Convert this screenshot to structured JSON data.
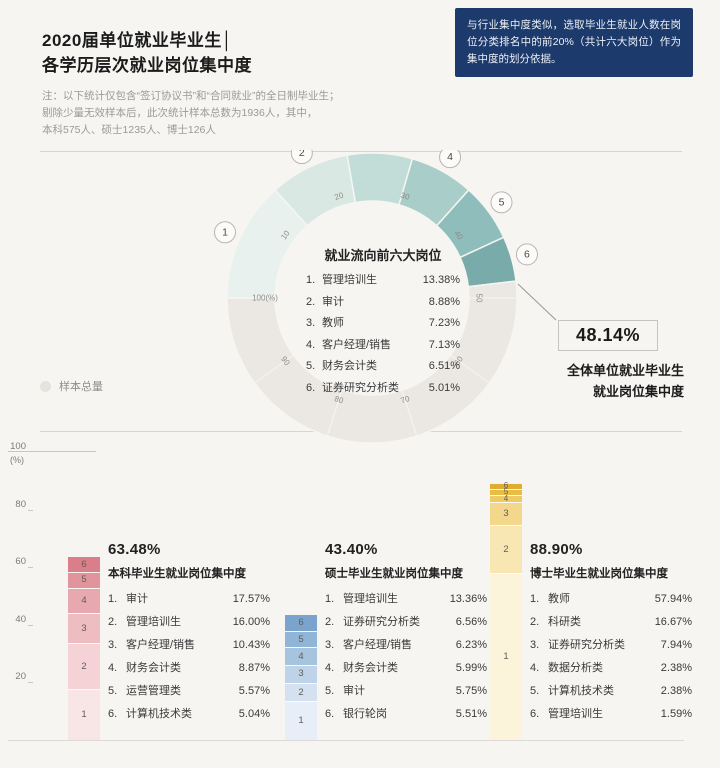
{
  "header": {
    "title_line1": "2020届单位就业毕业生│",
    "title_line2": "各学历层次就业岗位集中度",
    "notes": [
      "注：以下统计仅包含“签订协议书”和“合同就业”的全日制毕业生；",
      "剔除少量无效样本后，此次统计样本总数为1936人，其中，",
      "本科575人、硕士1235人、博士126人"
    ],
    "callout_text": "与行业集中度类似，选取毕业生就业人数在岗位分类排名中的前20%（共计六大岗位）作为集中度的划分依据。"
  },
  "legend": {
    "sample_total": "样本总量"
  },
  "axis": {
    "ticks": [
      "100",
      "80",
      "60",
      "40",
      "20"
    ],
    "unit": "(%)"
  },
  "chart_data": [
    {
      "type": "donut",
      "title": "就业流向前六大岗位",
      "axis_range": [
        0,
        100
      ],
      "items": [
        {
          "rank": "1",
          "label": "管理培训生",
          "value": 13.38,
          "pct": "13.38%"
        },
        {
          "rank": "2",
          "label": "审计",
          "value": 8.88,
          "pct": "8.88%"
        },
        {
          "rank": "3",
          "label": "教师",
          "value": 7.23,
          "pct": "7.23%"
        },
        {
          "rank": "4",
          "label": "客户经理/销售",
          "value": 7.13,
          "pct": "7.13%"
        },
        {
          "rank": "5",
          "label": "财务会计类",
          "value": 6.51,
          "pct": "6.51%"
        },
        {
          "rank": "6",
          "label": "证券研究分析类",
          "value": 5.01,
          "pct": "5.01%"
        }
      ],
      "scale_ticks": [
        "10",
        "20",
        "30",
        "40",
        "50",
        "60",
        "70",
        "80",
        "90",
        "100(%)"
      ],
      "total": {
        "value": "48.14%",
        "caption_line1": "全体单位就业毕业生",
        "caption_line2": "就业岗位集中度"
      },
      "colors": [
        "#e9f1ee",
        "#d9e8e3",
        "#c2dcd7",
        "#a9cdc9",
        "#8ebdbb",
        "#78abaa"
      ],
      "rest_color": "#ebe8e3"
    },
    {
      "type": "stacked-bar",
      "headline": "63.48%",
      "title": "本科毕业生就业岗位集中度",
      "items": [
        {
          "rank": "1",
          "label": "审计",
          "value": 17.57,
          "pct": "17.57%"
        },
        {
          "rank": "2",
          "label": "管理培训生",
          "value": 16.0,
          "pct": "16.00%"
        },
        {
          "rank": "3",
          "label": "客户经理/销售",
          "value": 10.43,
          "pct": "10.43%"
        },
        {
          "rank": "4",
          "label": "财务会计类",
          "value": 8.87,
          "pct": "8.87%"
        },
        {
          "rank": "5",
          "label": "运营管理类",
          "value": 5.57,
          "pct": "5.57%"
        },
        {
          "rank": "6",
          "label": "计算机技术类",
          "value": 5.04,
          "pct": "5.04%"
        }
      ],
      "colors": [
        "#f8e6e6",
        "#f4d2d5",
        "#eebdc2",
        "#e7a8af",
        "#e1949c",
        "#da7f89"
      ]
    },
    {
      "type": "stacked-bar",
      "headline": "43.40%",
      "title": "硕士毕业生就业岗位集中度",
      "items": [
        {
          "rank": "1",
          "label": "管理培训生",
          "value": 13.36,
          "pct": "13.36%"
        },
        {
          "rank": "2",
          "label": "证券研究分析类",
          "value": 6.56,
          "pct": "6.56%"
        },
        {
          "rank": "3",
          "label": "客户经理/销售",
          "value": 6.23,
          "pct": "6.23%"
        },
        {
          "rank": "4",
          "label": "财务会计类",
          "value": 5.99,
          "pct": "5.99%"
        },
        {
          "rank": "5",
          "label": "审计",
          "value": 5.75,
          "pct": "5.75%"
        },
        {
          "rank": "6",
          "label": "银行轮岗",
          "value": 5.51,
          "pct": "5.51%"
        }
      ],
      "colors": [
        "#e7eef7",
        "#d3e1f0",
        "#bed3e8",
        "#a7c4df",
        "#91b5d6",
        "#7aa4cb"
      ]
    },
    {
      "type": "stacked-bar",
      "headline": "88.90%",
      "title": "博士毕业生就业岗位集中度",
      "items": [
        {
          "rank": "1",
          "label": "教师",
          "value": 57.94,
          "pct": "57.94%"
        },
        {
          "rank": "2",
          "label": "科研类",
          "value": 16.67,
          "pct": "16.67%"
        },
        {
          "rank": "3",
          "label": "证券研究分析类",
          "value": 7.94,
          "pct": "7.94%"
        },
        {
          "rank": "4",
          "label": "数据分析类",
          "value": 2.38,
          "pct": "2.38%"
        },
        {
          "rank": "5",
          "label": "计算机技术类",
          "value": 2.38,
          "pct": "2.38%"
        },
        {
          "rank": "6",
          "label": "管理培训生",
          "value": 1.59,
          "pct": "1.59%"
        }
      ],
      "colors": [
        "#fcf4da",
        "#f8e7b2",
        "#f3d88b",
        "#eeca63",
        "#e8bc45",
        "#e1ad30"
      ]
    }
  ]
}
